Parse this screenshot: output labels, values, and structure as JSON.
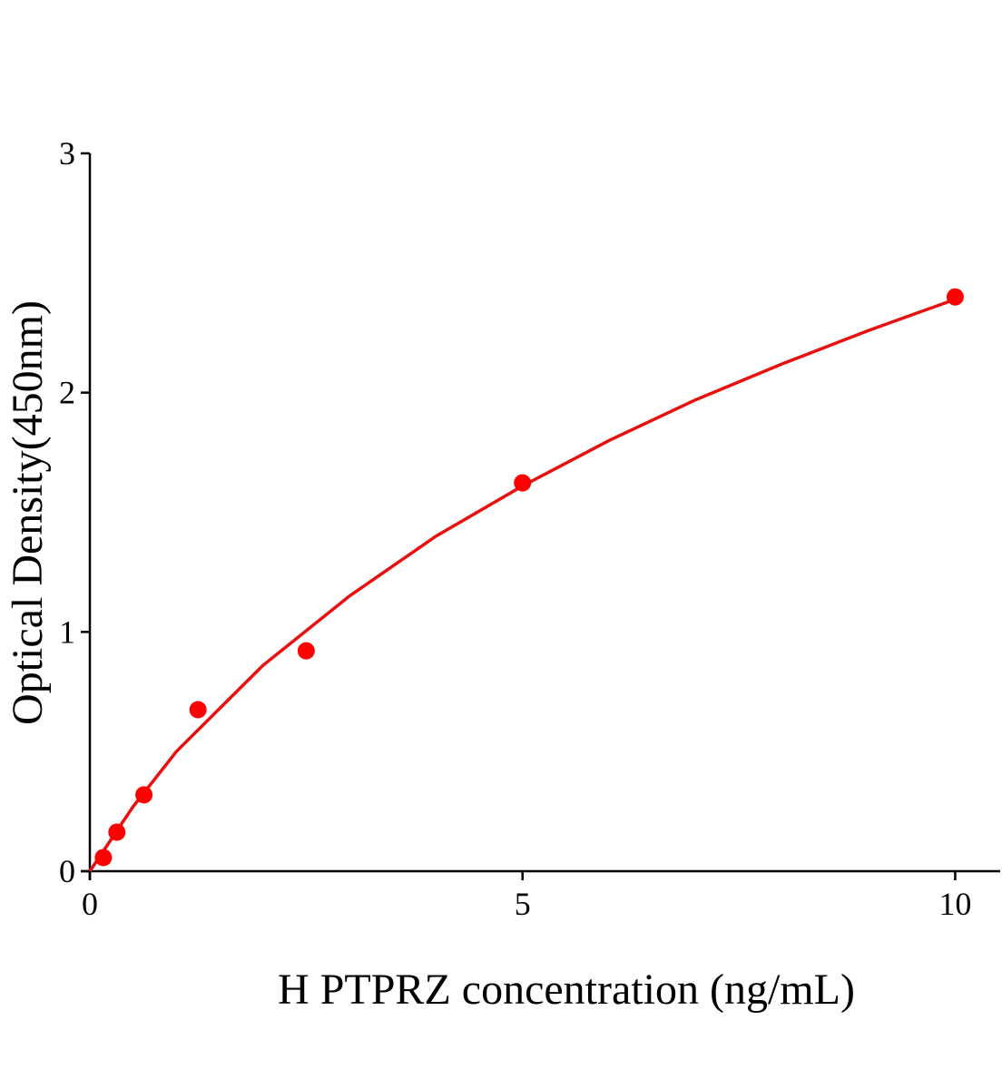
{
  "chart_data": {
    "type": "scatter",
    "x_label": "H PTPRZ concentration (ng/mL)",
    "y_label": "Optical Density(450nm)",
    "x": [
      0.156,
      0.3125,
      0.625,
      1.25,
      2.5,
      5,
      10
    ],
    "values": [
      0.057,
      0.163,
      0.319,
      0.675,
      0.921,
      1.623,
      2.4
    ],
    "color": "#ff0000",
    "fit": {
      "type": "line",
      "color": "#e8100f",
      "x": [
        0,
        0.5,
        1,
        2,
        3,
        4,
        5,
        6,
        7,
        8,
        9,
        10
      ],
      "values": [
        0,
        0.27,
        0.5,
        0.86,
        1.15,
        1.4,
        1.61,
        1.8,
        1.97,
        2.12,
        2.26,
        2.39
      ]
    },
    "xlim": [
      0,
      10.52
    ],
    "ylim": [
      0,
      3
    ],
    "xticks": [
      0,
      5,
      10
    ],
    "yticks": [
      0,
      1,
      2,
      3
    ]
  }
}
